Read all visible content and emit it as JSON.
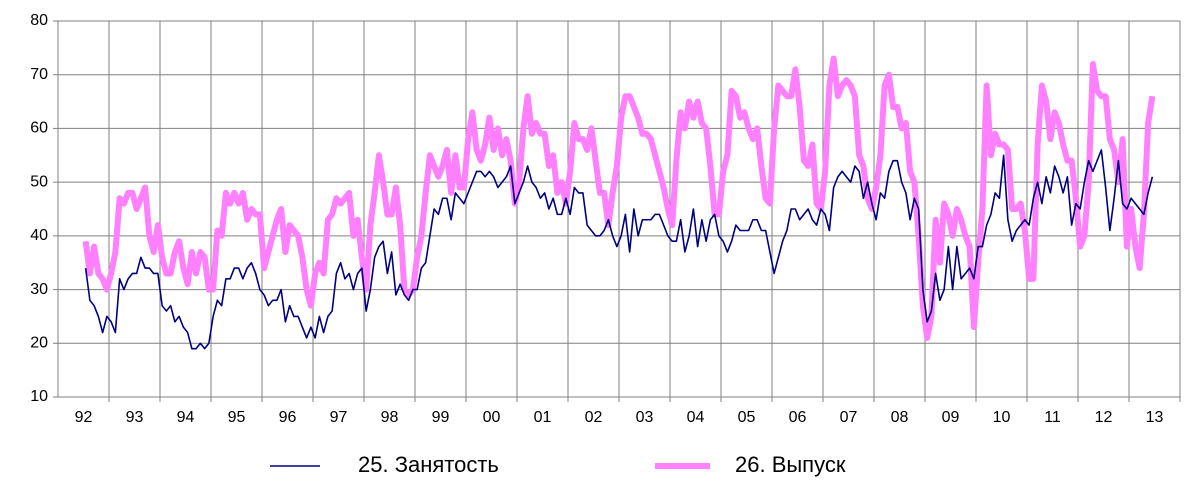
{
  "chart_data": {
    "type": "line",
    "categories": [
      null,
      null,
      null,
      null,
      null,
      null,
      "92",
      null,
      null,
      null,
      null,
      null,
      null,
      null,
      null,
      null,
      null,
      null,
      "93",
      null,
      null,
      null,
      null,
      null,
      null,
      null,
      null,
      null,
      null,
      null,
      "94",
      null,
      null,
      null,
      null,
      null,
      null,
      null,
      null,
      null,
      null,
      null,
      "95",
      null,
      null,
      null,
      null,
      null,
      null,
      null,
      null,
      null,
      null,
      null,
      "96",
      null,
      null,
      null,
      null,
      null,
      null,
      null,
      null,
      null,
      null,
      null,
      "97",
      null,
      null,
      null,
      null,
      null,
      null,
      null,
      null,
      null,
      null,
      null,
      "98",
      null,
      null,
      null,
      null,
      null,
      null,
      null,
      null,
      null,
      null,
      null,
      "99",
      null,
      null,
      null,
      null,
      null,
      null,
      null,
      null,
      null,
      null,
      null,
      "00",
      null,
      null,
      null,
      null,
      null,
      null,
      null,
      null,
      null,
      null,
      null,
      "01",
      null,
      null,
      null,
      null,
      null,
      null,
      null,
      null,
      null,
      null,
      null,
      "02",
      null,
      null,
      null,
      null,
      null,
      null,
      null,
      null,
      null,
      null,
      null,
      "03",
      null,
      null,
      null,
      null,
      null,
      null,
      null,
      null,
      null,
      null,
      null,
      "04",
      null,
      null,
      null,
      null,
      null,
      null,
      null,
      null,
      null,
      null,
      null,
      "05",
      null,
      null,
      null,
      null,
      null,
      null,
      null,
      null,
      null,
      null,
      null,
      "06",
      null,
      null,
      null,
      null,
      null,
      null,
      null,
      null,
      null,
      null,
      null,
      "07",
      null,
      null,
      null,
      null,
      null,
      null,
      null,
      null,
      null,
      null,
      null,
      "08",
      null,
      null,
      null,
      null,
      null,
      null,
      null,
      null,
      null,
      null,
      null,
      "09",
      null,
      null,
      null,
      null,
      null,
      null,
      null,
      null,
      null,
      null,
      null,
      "10",
      null,
      null,
      null,
      null,
      null,
      null,
      null,
      null,
      null,
      null,
      null,
      "11",
      null,
      null,
      null,
      null,
      null,
      null,
      null,
      null,
      null,
      null,
      null,
      "12",
      null,
      null,
      null,
      null,
      null,
      null,
      null,
      null,
      null,
      null,
      null,
      "13",
      null,
      null,
      null,
      null,
      null
    ],
    "series": [
      {
        "name": "25. Занятость",
        "color": "#000080",
        "values": [
          null,
          null,
          null,
          null,
          null,
          null,
          34,
          28,
          27,
          25,
          22,
          25,
          24,
          22,
          32,
          30,
          32,
          33,
          33,
          36,
          34,
          34,
          33,
          33,
          27,
          26,
          27,
          24,
          25,
          23,
          22,
          19,
          19,
          20,
          19,
          20,
          25,
          28,
          27,
          32,
          32,
          34,
          34,
          32,
          34,
          35,
          33,
          30,
          29,
          27,
          28,
          28,
          30,
          24,
          27,
          25,
          25,
          23,
          21,
          23,
          21,
          25,
          22,
          25,
          26,
          33,
          35,
          32,
          33,
          30,
          33,
          34,
          26,
          30,
          36,
          38,
          39,
          33,
          37,
          29,
          31,
          29,
          28,
          30,
          30,
          34,
          35,
          40,
          45,
          44,
          47,
          47,
          43,
          48,
          47,
          46,
          48,
          50,
          52,
          52,
          51,
          52,
          51,
          49,
          50,
          51,
          53,
          46,
          48,
          50,
          53,
          50,
          49,
          47,
          48,
          45,
          47,
          44,
          44,
          47,
          44,
          49,
          48,
          48,
          42,
          41,
          40,
          40,
          41,
          43,
          40,
          38,
          40,
          44,
          37,
          45,
          40,
          43,
          43,
          43,
          44,
          44,
          42,
          40,
          39,
          39,
          43,
          37,
          40,
          45,
          38,
          43,
          39,
          43,
          44,
          40,
          39,
          37,
          39,
          42,
          41,
          41,
          41,
          43,
          43,
          41,
          41,
          37,
          33,
          36,
          39,
          41,
          45,
          45,
          43,
          44,
          45,
          43,
          42,
          45,
          44,
          41,
          49,
          51,
          52,
          51,
          50,
          53,
          52,
          47,
          50,
          46,
          43,
          48,
          47,
          52,
          54,
          54,
          50,
          48,
          43,
          47,
          45,
          30,
          24,
          26,
          33,
          28,
          30,
          38,
          30,
          38,
          32,
          33,
          34,
          32,
          38,
          38,
          42,
          44,
          48,
          47,
          55,
          43,
          39,
          41,
          42,
          43,
          42,
          47,
          50,
          46,
          51,
          48,
          53,
          51,
          48,
          51,
          42,
          46,
          45,
          50,
          54,
          52,
          54,
          56,
          49,
          41,
          47,
          54,
          46,
          45,
          47,
          46,
          45,
          44,
          48,
          51,
          null,
          null,
          null,
          null,
          null,
          null
        ]
      },
      {
        "name": "26. Выпуск",
        "color": "#ff80ff",
        "values": [
          null,
          null,
          null,
          null,
          null,
          null,
          39,
          33,
          38,
          33,
          32,
          30,
          33,
          37,
          47,
          46,
          48,
          48,
          45,
          47,
          49,
          40,
          37,
          42,
          36,
          33,
          33,
          37,
          39,
          34,
          31,
          37,
          33,
          37,
          36,
          30,
          30,
          41,
          40,
          48,
          46,
          48,
          46,
          48,
          43,
          45,
          44,
          44,
          34,
          37,
          40,
          43,
          45,
          37,
          42,
          41,
          40,
          36,
          30,
          27,
          33,
          35,
          33,
          43,
          44,
          47,
          46,
          47,
          48,
          40,
          43,
          36,
          30,
          42,
          48,
          55,
          50,
          44,
          44,
          49,
          42,
          30,
          29,
          30,
          36,
          40,
          48,
          55,
          53,
          51,
          53,
          56,
          48,
          55,
          49,
          49,
          58,
          63,
          56,
          54,
          57,
          62,
          56,
          60,
          55,
          58,
          54,
          46,
          50,
          60,
          66,
          59,
          61,
          59,
          59,
          53,
          55,
          48,
          50,
          46,
          52,
          61,
          58,
          58,
          56,
          60,
          54,
          48,
          48,
          42,
          48,
          53,
          62,
          66,
          66,
          64,
          62,
          59,
          59,
          58,
          55,
          52,
          49,
          45,
          42,
          54,
          63,
          60,
          65,
          62,
          65,
          61,
          60,
          53,
          44,
          44,
          52,
          55,
          67,
          66,
          62,
          63,
          60,
          58,
          60,
          53,
          47,
          46,
          60,
          68,
          67,
          66,
          66,
          71,
          64,
          54,
          53,
          57,
          46,
          45,
          52,
          68,
          73,
          66,
          68,
          69,
          68,
          66,
          55,
          53,
          47,
          45,
          49,
          55,
          68,
          70,
          64,
          64,
          60,
          61,
          52,
          50,
          40,
          27,
          21,
          25,
          43,
          35,
          46,
          44,
          40,
          45,
          43,
          40,
          38,
          23,
          35,
          45,
          68,
          55,
          59,
          57,
          57,
          56,
          45,
          45,
          46,
          41,
          32,
          32,
          57,
          68,
          65,
          58,
          63,
          61,
          57,
          54,
          54,
          47,
          38,
          40,
          50,
          72,
          67,
          66,
          66,
          58,
          56,
          50,
          58,
          38,
          45,
          38,
          34,
          44,
          61,
          66,
          null,
          null,
          null,
          null,
          null,
          null
        ]
      }
    ],
    "ylim": [
      10,
      80
    ],
    "yticks": [
      10,
      20,
      30,
      40,
      50,
      60,
      70,
      80
    ],
    "grid": true
  }
}
